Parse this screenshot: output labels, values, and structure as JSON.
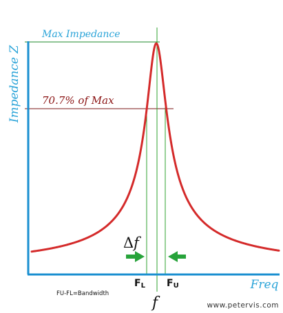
{
  "labels": {
    "y_axis": "Impedance Z",
    "x_axis": "Freq",
    "max_impedance": "Max Impedance",
    "pct_of_max": "70.7% of Max",
    "delta": "Δ",
    "f_italic": "f",
    "fl_main": "F",
    "fl_sub": "L",
    "fu_main": "F",
    "fu_sub": "U",
    "f_center": "f",
    "bandwidth": "FU-FL=Bandwidth",
    "website": "www.petervis.com"
  },
  "colors": {
    "axis": "#1a8fd0",
    "axis_text": "#29a3d8",
    "curve": "#d42a2a",
    "max_text": "#29a3d8",
    "pct_text": "#8a1212",
    "max_line": "#1e8a2a",
    "pct_line": "#7a1010",
    "guide": "#2ca02c",
    "arrow": "#27a33a",
    "text_dark": "#111111",
    "website": "#333333"
  },
  "curve": {
    "type": "resonance-peak",
    "level_fraction": 0.707
  }
}
